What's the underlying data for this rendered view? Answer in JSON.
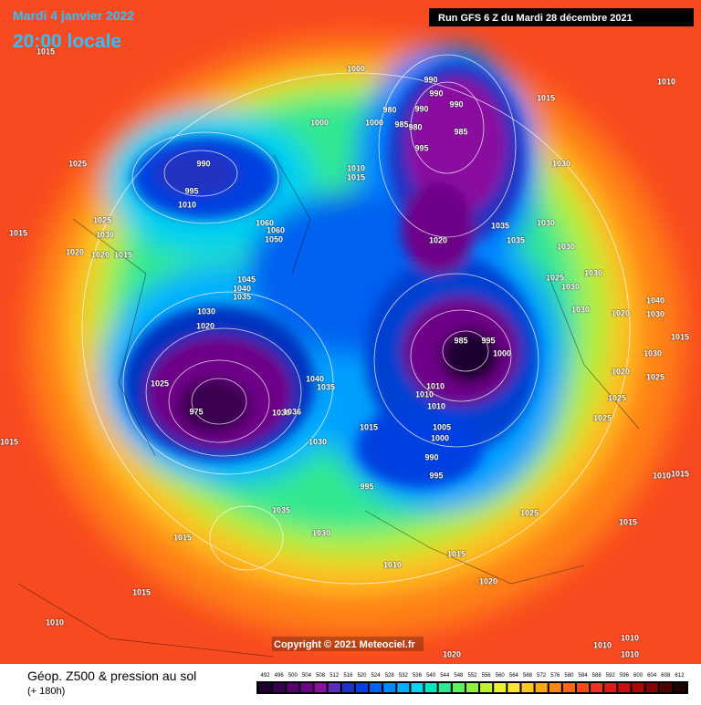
{
  "header": {
    "date": "Mardi 4 janvier 2022",
    "time": "20:00 locale",
    "run": "Run GFS 6 Z du Mardi 28 décembre 2021"
  },
  "copyright": "Copyright © 2021 Meteociel.fr",
  "legend": {
    "title": "Géop. Z500 & pression au sol",
    "lead": "(+ 180h)",
    "scale": [
      "492",
      "496",
      "500",
      "504",
      "508",
      "512",
      "516",
      "520",
      "524",
      "528",
      "532",
      "536",
      "540",
      "544",
      "548",
      "552",
      "556",
      "560",
      "564",
      "568",
      "572",
      "576",
      "580",
      "584",
      "588",
      "592",
      "596",
      "600",
      "604",
      "608",
      "612"
    ],
    "colors": [
      "#1e0030",
      "#3a0050",
      "#55006e",
      "#6e0088",
      "#8a10a0",
      "#5a30b8",
      "#2030c0",
      "#0040e0",
      "#0060f0",
      "#0088ff",
      "#00b0ff",
      "#00d8f0",
      "#00e8c0",
      "#30e890",
      "#60f060",
      "#90f040",
      "#c0f030",
      "#e8f030",
      "#ffe828",
      "#ffc820",
      "#ffa818",
      "#ff8818",
      "#ff6818",
      "#ff4818",
      "#f83020",
      "#e01818",
      "#c81010",
      "#a80808",
      "#800404",
      "#500000",
      "#200000"
    ]
  },
  "pressure_labels": [
    "1010",
    "1015",
    "1025",
    "1015",
    "1025",
    "1030",
    "1020",
    "1020",
    "1015",
    "990",
    "995",
    "1010",
    "1000",
    "1000",
    "990",
    "990",
    "990",
    "980",
    "990",
    "1000",
    "985",
    "980",
    "985",
    "995",
    "1010",
    "1015",
    "1015",
    "1030",
    "1035",
    "1035",
    "1030",
    "1020",
    "1030",
    "1030",
    "1025",
    "1030",
    "1045",
    "1040",
    "1035",
    "1030",
    "1020",
    "1025",
    "985",
    "995",
    "1000",
    "1040",
    "1035",
    "1010",
    "1010",
    "1010",
    "1015",
    "1005",
    "1000",
    "990",
    "995",
    "995",
    "1030",
    "1035",
    "1015",
    "1030",
    "1025",
    "1015",
    "1010",
    "1020",
    "1015",
    "1010",
    "1015",
    "1015",
    "1010",
    "1020",
    "1025",
    "1025",
    "1025",
    "1030",
    "1015",
    "1040",
    "1030",
    "1020",
    "1030",
    "1010",
    "1010",
    "1010",
    "1020",
    "1015",
    "975",
    "1060",
    "1060",
    "1050",
    "1030",
    "1036"
  ]
}
